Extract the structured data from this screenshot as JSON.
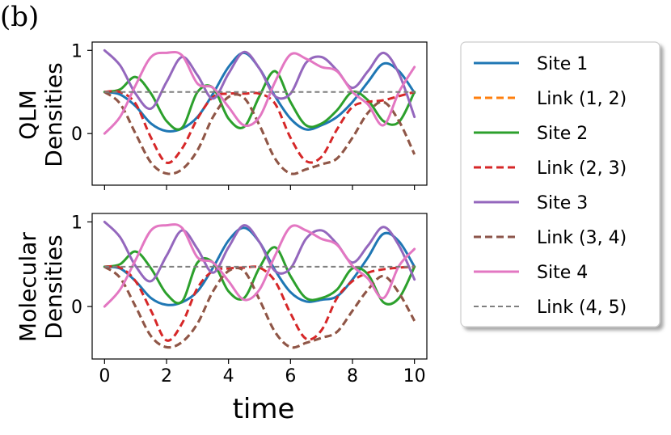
{
  "panel_label": "(b)",
  "chart_data": [
    {
      "type": "line",
      "panel": "top",
      "ylabel": [
        "QLM",
        "Densities"
      ],
      "xlim": [
        -0.4,
        10.4
      ],
      "ylim": [
        -0.62,
        1.1
      ],
      "yticks": [
        0,
        1
      ],
      "xticks": [
        0,
        2,
        4,
        6,
        8,
        10
      ],
      "xtick_labels_shown": false,
      "series": [
        {
          "name": "Site 1",
          "color": "#1f77b4",
          "dash": "solid",
          "x": [
            0,
            0.5,
            1,
            1.5,
            2,
            2.5,
            3,
            3.5,
            4,
            4.5,
            5,
            5.5,
            6,
            6.5,
            7,
            7.5,
            8,
            8.5,
            9,
            9.5,
            10
          ],
          "y": [
            0.5,
            0.47,
            0.33,
            0.12,
            0.03,
            0.06,
            0.2,
            0.48,
            0.8,
            0.97,
            0.78,
            0.45,
            0.18,
            0.05,
            0.1,
            0.2,
            0.38,
            0.62,
            0.84,
            0.75,
            0.49
          ]
        },
        {
          "name": "Link (1,2)",
          "color": "#ff7f0e",
          "dash": "dashed",
          "x": [
            0,
            0.5,
            1,
            1.5,
            2,
            2.5,
            3,
            3.5,
            4,
            4.5,
            5,
            5.5,
            6,
            6.5,
            7,
            7.5,
            8,
            8.5,
            9,
            9.5,
            10
          ],
          "y": [
            0.5,
            0.36,
            0.0,
            -0.35,
            -0.48,
            -0.43,
            -0.2,
            0.2,
            0.44,
            0.43,
            0.1,
            -0.3,
            -0.48,
            -0.43,
            -0.37,
            -0.3,
            -0.05,
            0.25,
            0.38,
            0.15,
            -0.25
          ]
        },
        {
          "name": "Site 2",
          "color": "#2ca02c",
          "dash": "solid",
          "x": [
            0,
            0.5,
            1,
            1.5,
            2,
            2.5,
            3,
            3.5,
            4,
            4.5,
            5,
            5.5,
            6,
            6.5,
            7,
            7.5,
            8,
            8.5,
            9,
            9.5,
            10
          ],
          "y": [
            0.5,
            0.53,
            0.68,
            0.48,
            0.15,
            0.07,
            0.5,
            0.55,
            0.18,
            0.08,
            0.45,
            0.75,
            0.38,
            0.1,
            0.12,
            0.28,
            0.5,
            0.4,
            0.15,
            0.14,
            0.5
          ]
        },
        {
          "name": "Link (2,3)",
          "color": "#d62728",
          "dash": "dashed",
          "x": [
            0,
            0.5,
            1,
            1.5,
            2,
            2.5,
            3,
            3.5,
            4,
            4.5,
            5,
            5.5,
            6,
            6.5,
            7,
            7.5,
            8,
            8.5,
            9,
            9.5,
            10
          ],
          "y": [
            0.5,
            0.5,
            0.36,
            -0.05,
            -0.35,
            -0.18,
            0.18,
            0.44,
            0.48,
            0.48,
            0.48,
            0.36,
            -0.05,
            -0.33,
            -0.28,
            0.05,
            0.32,
            0.38,
            0.4,
            0.45,
            0.5
          ]
        },
        {
          "name": "Site 3",
          "color": "#9467bd",
          "dash": "solid",
          "x": [
            0,
            0.5,
            1,
            1.5,
            2,
            2.5,
            3,
            3.5,
            4,
            4.5,
            5,
            5.5,
            6,
            6.5,
            7,
            7.5,
            8,
            8.5,
            9,
            9.5,
            10
          ],
          "y": [
            1.0,
            0.82,
            0.48,
            0.3,
            0.62,
            0.92,
            0.7,
            0.42,
            0.72,
            0.98,
            0.78,
            0.45,
            0.48,
            0.85,
            0.92,
            0.76,
            0.55,
            0.75,
            0.97,
            0.72,
            0.2
          ]
        },
        {
          "name": "Link (3,4)",
          "color": "#8c564b",
          "dash": "dashed",
          "x": [
            0,
            0.5,
            1,
            1.5,
            2,
            2.5,
            3,
            3.5,
            4,
            4.5,
            5,
            5.5,
            6,
            6.5,
            7,
            7.5,
            8,
            8.5,
            9,
            9.5,
            10
          ],
          "y": [
            0.5,
            0.36,
            0.0,
            -0.35,
            -0.48,
            -0.43,
            -0.2,
            0.2,
            0.44,
            0.43,
            0.1,
            -0.3,
            -0.48,
            -0.43,
            -0.37,
            -0.3,
            -0.05,
            0.25,
            0.38,
            0.15,
            -0.25
          ]
        },
        {
          "name": "Site 4",
          "color": "#e377c2",
          "dash": "solid",
          "x": [
            0,
            0.5,
            1,
            1.5,
            2,
            2.5,
            3,
            3.5,
            4,
            4.5,
            5,
            5.5,
            6,
            6.5,
            7,
            7.5,
            8,
            8.5,
            9,
            9.5,
            10
          ],
          "y": [
            0.0,
            0.2,
            0.58,
            0.92,
            0.97,
            0.94,
            0.6,
            0.55,
            0.32,
            0.1,
            0.2,
            0.62,
            0.95,
            0.9,
            0.8,
            0.75,
            0.5,
            0.35,
            0.1,
            0.5,
            0.8
          ]
        },
        {
          "name": "Link (4,5)",
          "color": "#7f7f7f",
          "dash": "dashed-thin",
          "x": [
            0,
            10
          ],
          "y": [
            0.5,
            0.5
          ]
        }
      ]
    },
    {
      "type": "line",
      "panel": "bottom",
      "ylabel": [
        "Molecular",
        "Densities"
      ],
      "xlabel": "time",
      "xlim": [
        -0.4,
        10.4
      ],
      "ylim": [
        -0.62,
        1.1
      ],
      "yticks": [
        0,
        1
      ],
      "xticks": [
        0,
        2,
        4,
        6,
        8,
        10
      ],
      "series": [
        {
          "name": "Site 1",
          "color": "#1f77b4",
          "dash": "solid",
          "x": [
            0,
            0.5,
            1,
            1.5,
            2,
            2.5,
            3,
            3.5,
            4,
            4.5,
            5,
            5.5,
            6,
            6.5,
            7,
            7.5,
            8,
            8.5,
            9,
            9.5,
            10
          ],
          "y": [
            0.47,
            0.45,
            0.3,
            0.1,
            0.02,
            0.05,
            0.18,
            0.46,
            0.78,
            0.93,
            0.76,
            0.43,
            0.17,
            0.06,
            0.08,
            0.12,
            0.32,
            0.58,
            0.86,
            0.77,
            0.47
          ]
        },
        {
          "name": "Link (1,2)",
          "color": "#ff7f0e",
          "dash": "dashed",
          "x": [
            0,
            0.5,
            1,
            1.5,
            2,
            2.5,
            3,
            3.5,
            4,
            4.5,
            5,
            5.5,
            6,
            6.5,
            7,
            7.5,
            8,
            8.5,
            9,
            9.5,
            10
          ],
          "y": [
            0.47,
            0.34,
            0.0,
            -0.35,
            -0.48,
            -0.42,
            -0.2,
            0.18,
            0.42,
            0.42,
            0.08,
            -0.3,
            -0.48,
            -0.43,
            -0.37,
            -0.3,
            -0.05,
            0.2,
            0.36,
            0.16,
            -0.17
          ]
        },
        {
          "name": "Site 2",
          "color": "#2ca02c",
          "dash": "solid",
          "x": [
            0,
            0.5,
            1,
            1.5,
            2,
            2.5,
            3,
            3.5,
            4,
            4.5,
            5,
            5.5,
            6,
            6.5,
            7,
            7.5,
            8,
            8.5,
            9,
            9.5,
            10
          ],
          "y": [
            0.47,
            0.5,
            0.65,
            0.45,
            0.15,
            0.06,
            0.52,
            0.52,
            0.18,
            0.1,
            0.46,
            0.7,
            0.36,
            0.1,
            0.1,
            0.2,
            0.45,
            0.38,
            0.05,
            0.1,
            0.47
          ]
        },
        {
          "name": "Link (2,3)",
          "color": "#d62728",
          "dash": "dashed",
          "x": [
            0,
            0.5,
            1,
            1.5,
            2,
            2.5,
            3,
            3.5,
            4,
            4.5,
            5,
            5.5,
            6,
            6.5,
            7,
            7.5,
            8,
            8.5,
            9,
            9.5,
            10
          ],
          "y": [
            0.47,
            0.46,
            0.3,
            -0.05,
            -0.4,
            -0.2,
            0.22,
            0.42,
            0.45,
            0.46,
            0.46,
            0.3,
            -0.08,
            -0.38,
            -0.28,
            0.1,
            0.3,
            0.4,
            0.44,
            0.46,
            0.47
          ]
        },
        {
          "name": "Site 3",
          "color": "#9467bd",
          "dash": "solid",
          "x": [
            0,
            0.5,
            1,
            1.5,
            2,
            2.5,
            3,
            3.5,
            4,
            4.5,
            5,
            5.5,
            6,
            6.5,
            7,
            7.5,
            8,
            8.5,
            9,
            9.5,
            10
          ],
          "y": [
            1.0,
            0.82,
            0.48,
            0.3,
            0.6,
            0.9,
            0.68,
            0.4,
            0.7,
            0.96,
            0.76,
            0.42,
            0.45,
            0.8,
            0.9,
            0.74,
            0.52,
            0.72,
            0.94,
            0.72,
            0.32
          ]
        },
        {
          "name": "Link (3,4)",
          "color": "#8c564b",
          "dash": "dashed",
          "x": [
            0,
            0.5,
            1,
            1.5,
            2,
            2.5,
            3,
            3.5,
            4,
            4.5,
            5,
            5.5,
            6,
            6.5,
            7,
            7.5,
            8,
            8.5,
            9,
            9.5,
            10
          ],
          "y": [
            0.47,
            0.34,
            0.0,
            -0.35,
            -0.48,
            -0.42,
            -0.2,
            0.18,
            0.42,
            0.42,
            0.08,
            -0.3,
            -0.48,
            -0.43,
            -0.37,
            -0.3,
            -0.05,
            0.2,
            0.36,
            0.16,
            -0.17
          ]
        },
        {
          "name": "Site 4",
          "color": "#e377c2",
          "dash": "solid",
          "x": [
            0,
            0.5,
            1,
            1.5,
            2,
            2.5,
            3,
            3.5,
            4,
            4.5,
            5,
            5.5,
            6,
            6.5,
            7,
            7.5,
            8,
            8.5,
            9,
            9.5,
            10
          ],
          "y": [
            0.0,
            0.2,
            0.55,
            0.9,
            0.96,
            0.93,
            0.58,
            0.52,
            0.3,
            0.08,
            0.2,
            0.6,
            0.94,
            0.9,
            0.8,
            0.73,
            0.48,
            0.33,
            0.1,
            0.48,
            0.68
          ]
        },
        {
          "name": "Link (4,5)",
          "color": "#7f7f7f",
          "dash": "dashed-thin",
          "x": [
            0,
            10
          ],
          "y": [
            0.47,
            0.47
          ]
        }
      ]
    }
  ],
  "legend": {
    "placement": "right",
    "entries": [
      {
        "label": "Site 1",
        "color": "#1f77b4",
        "dash": "solid"
      },
      {
        "label": "Link (1, 2)",
        "color": "#ff7f0e",
        "dash": "dashed"
      },
      {
        "label": "Site 2",
        "color": "#2ca02c",
        "dash": "solid"
      },
      {
        "label": "Link (2, 3)",
        "color": "#d62728",
        "dash": "dashed"
      },
      {
        "label": "Site 3",
        "color": "#9467bd",
        "dash": "solid"
      },
      {
        "label": "Link (3, 4)",
        "color": "#8c564b",
        "dash": "dashed"
      },
      {
        "label": "Site 4",
        "color": "#e377c2",
        "dash": "solid"
      },
      {
        "label": "Link (4, 5)",
        "color": "#7f7f7f",
        "dash": "dashed-thin"
      }
    ]
  }
}
